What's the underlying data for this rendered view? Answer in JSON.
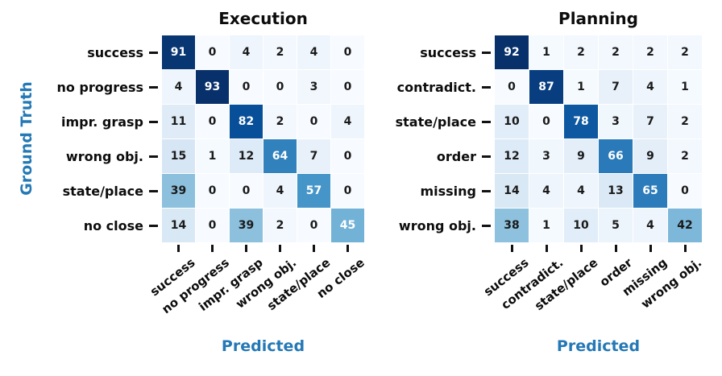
{
  "figure": {
    "ylabel": "Ground Truth",
    "xlabel": "Predicted"
  },
  "colors": {
    "axis_label_blue": "#2478b5",
    "cell_text_dark": "#1a1a1a",
    "cell_text_light": "#ffffff",
    "tick_color": "#111111",
    "background": "#ffffff",
    "white_text_threshold": 45,
    "blues_colormap_stops": [
      [
        0.0,
        "#f7fbff"
      ],
      [
        0.125,
        "#deebf7"
      ],
      [
        0.25,
        "#c6dbef"
      ],
      [
        0.375,
        "#9ecae1"
      ],
      [
        0.5,
        "#6baed6"
      ],
      [
        0.625,
        "#4292c6"
      ],
      [
        0.75,
        "#2171b5"
      ],
      [
        0.875,
        "#08519c"
      ],
      [
        1.0,
        "#08306b"
      ]
    ]
  },
  "chart_data": [
    {
      "type": "heatmap",
      "id": "execution",
      "title": "Execution",
      "xlabel": "Predicted",
      "ylabel": "Ground Truth",
      "x_labels": [
        "success",
        "no progress",
        "impr. grasp",
        "wrong obj.",
        "state/place",
        "no close"
      ],
      "y_labels": [
        "success",
        "no progress",
        "impr. grasp",
        "wrong obj.",
        "state/place",
        "no close"
      ],
      "values": [
        [
          91,
          0,
          4,
          2,
          4,
          0
        ],
        [
          4,
          93,
          0,
          0,
          3,
          0
        ],
        [
          11,
          0,
          82,
          2,
          0,
          4
        ],
        [
          15,
          1,
          12,
          64,
          7,
          0
        ],
        [
          39,
          0,
          0,
          4,
          57,
          0
        ],
        [
          14,
          0,
          39,
          2,
          0,
          45
        ]
      ],
      "vmin": 0,
      "vmax": 93,
      "colormap": "Blues",
      "legend": "none",
      "grid": false
    },
    {
      "type": "heatmap",
      "id": "planning",
      "title": "Planning",
      "xlabel": "Predicted",
      "ylabel": "",
      "x_labels": [
        "success",
        "contradict.",
        "state/place",
        "order",
        "missing",
        "wrong obj."
      ],
      "y_labels": [
        "success",
        "contradict.",
        "state/place",
        "order",
        "missing",
        "wrong obj."
      ],
      "values": [
        [
          92,
          1,
          2,
          2,
          2,
          2
        ],
        [
          0,
          87,
          1,
          7,
          4,
          1
        ],
        [
          10,
          0,
          78,
          3,
          7,
          2
        ],
        [
          12,
          3,
          9,
          66,
          9,
          2
        ],
        [
          14,
          4,
          4,
          13,
          65,
          0
        ],
        [
          38,
          1,
          10,
          5,
          4,
          42
        ]
      ],
      "vmin": 0,
      "vmax": 92,
      "colormap": "Blues",
      "legend": "none",
      "grid": false
    }
  ]
}
